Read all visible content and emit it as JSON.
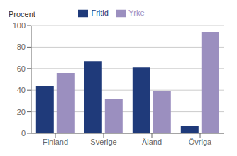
{
  "chart_data": {
    "type": "bar",
    "categories": [
      "Finland",
      "Sverige",
      "Åland",
      "Övriga"
    ],
    "series": [
      {
        "name": "Fritid",
        "color": "#1F3A7A",
        "values": [
          44,
          67,
          61,
          7
        ]
      },
      {
        "name": "Yrke",
        "color": "#9B8FBF",
        "values": [
          56,
          32,
          39,
          94
        ]
      }
    ],
    "ylabel": "Procent",
    "ylim": [
      0,
      100
    ],
    "yticks": [
      0,
      20,
      40,
      60,
      80,
      100
    ],
    "grid": true,
    "legend": "top"
  }
}
